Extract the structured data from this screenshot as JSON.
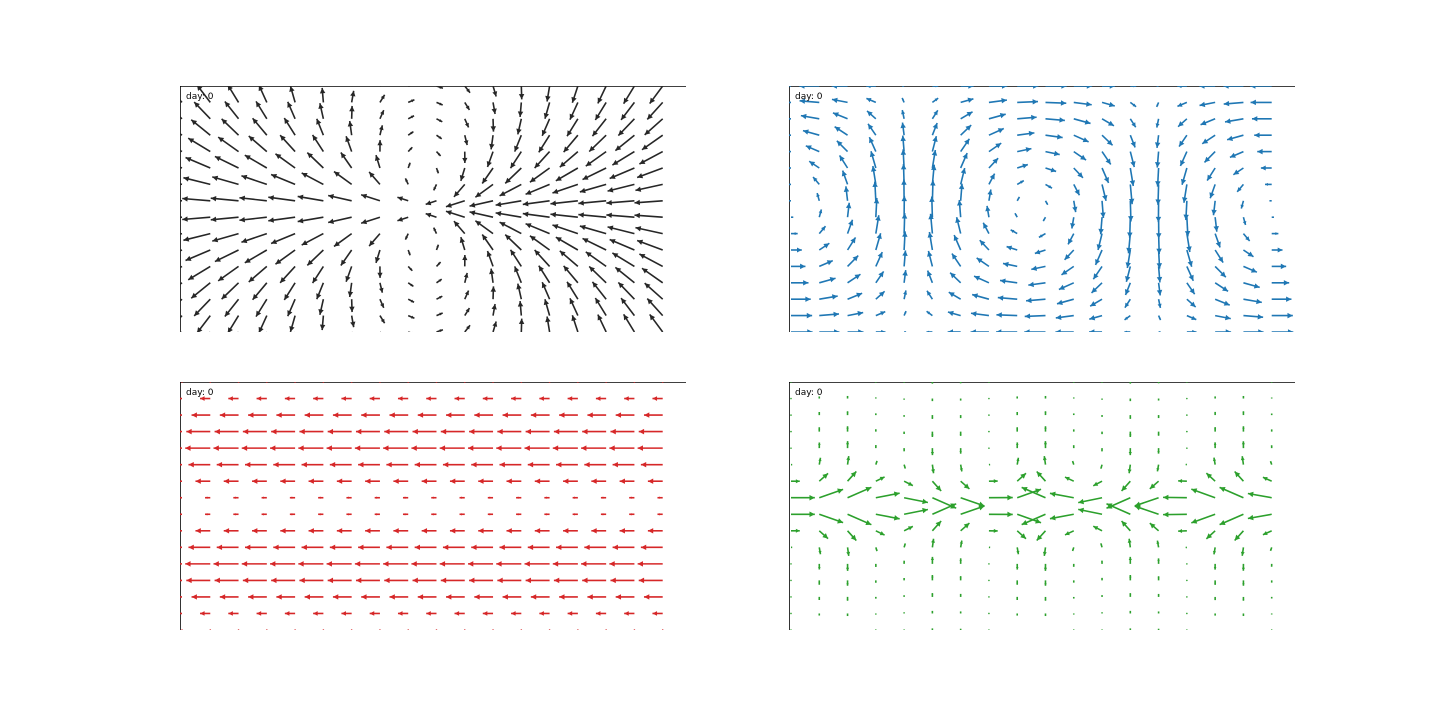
{
  "chart_data": [
    {
      "type": "quiver",
      "color": "#262626",
      "day_label": "day: 0",
      "xlim": [
        0,
        17
      ],
      "ylim": [
        0,
        15
      ],
      "grid": false,
      "field": "dipole",
      "nx": 18,
      "ny": 16
    },
    {
      "type": "quiver",
      "color": "#1f77b4",
      "day_label": "day: 0",
      "xlim": [
        0,
        17
      ],
      "ylim": [
        0,
        15
      ],
      "grid": false,
      "field": "circulation",
      "nx": 18,
      "ny": 16
    },
    {
      "type": "quiver",
      "color": "#d62728",
      "day_label": "day: 0",
      "xlim": [
        0,
        17
      ],
      "ylim": [
        0,
        15
      ],
      "grid": false,
      "field": "shear",
      "nx": 18,
      "ny": 16
    },
    {
      "type": "quiver",
      "color": "#2ca02c",
      "day_label": "day: 0",
      "xlim": [
        0,
        17
      ],
      "ylim": [
        0,
        15
      ],
      "grid": false,
      "field": "divergent",
      "nx": 18,
      "ny": 16
    }
  ]
}
